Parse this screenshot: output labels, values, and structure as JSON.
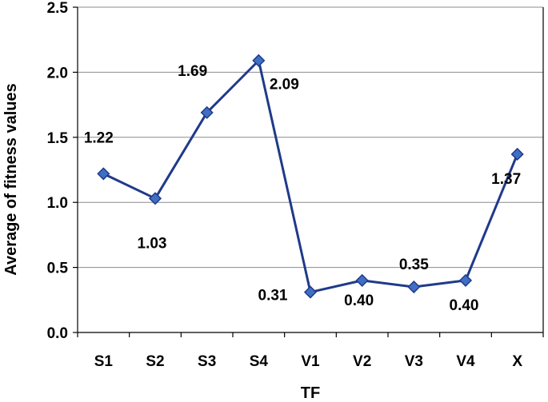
{
  "chart_data": {
    "type": "line",
    "categories": [
      "S1",
      "S2",
      "S3",
      "S4",
      "V1",
      "V2",
      "V3",
      "V4",
      "X"
    ],
    "series": [
      {
        "values": [
          1.22,
          1.03,
          1.69,
          2.09,
          0.31,
          0.4,
          0.35,
          0.4,
          1.37
        ],
        "data_labels": [
          "1.22",
          "1.03",
          "1.69",
          "2.09",
          "0.31",
          "0.40",
          "0.35",
          "0.40",
          "1.37"
        ],
        "color": "#1f3a8a",
        "marker": "diamond",
        "marker_fill": "#3f6fc4"
      }
    ],
    "title": "",
    "xlabel": "TF",
    "ylabel": "Average of fitness values",
    "ylim": [
      0,
      2.5
    ],
    "yticks": [
      "0.0",
      "0.5",
      "1.0",
      "1.5",
      "2.0",
      "2.5"
    ],
    "grid": true,
    "legend": "none"
  }
}
